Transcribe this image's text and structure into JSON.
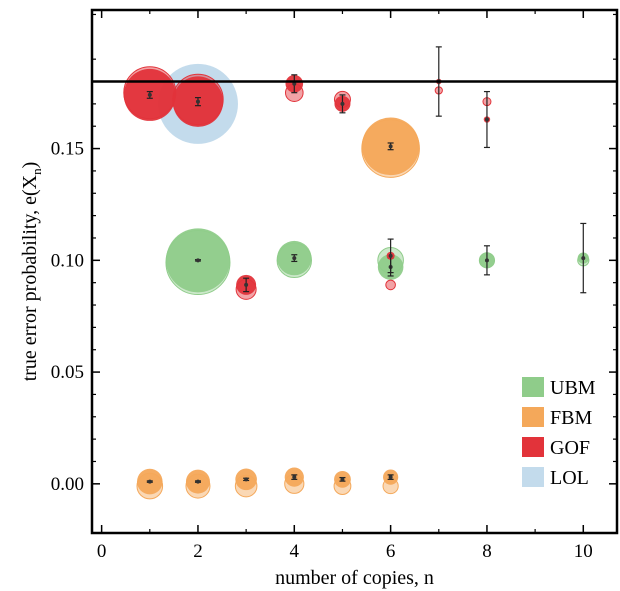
{
  "chart_data": {
    "type": "scatter",
    "title": "",
    "xlabel": "number of copies, n",
    "ylabel_main": "true error probability, e(X",
    "ylabel_sub": "n",
    "ylabel_close": ")",
    "xlim": [
      -0.2,
      10.7
    ],
    "ylim": [
      -0.022,
      0.212
    ],
    "xticks": [
      0,
      2,
      4,
      6,
      8,
      10
    ],
    "yticks": [
      0.0,
      0.05,
      0.1,
      0.15
    ],
    "xtick_labels": [
      "0",
      "2",
      "4",
      "6",
      "8",
      "10"
    ],
    "ytick_labels": [
      "0.00",
      "0.05",
      "0.10",
      "0.15"
    ],
    "reference_line_y": 0.18,
    "legend_position": "bottom-right",
    "colors": {
      "UBM": "#8fcc8a",
      "FBM": "#f4a85a",
      "GOF": "#e2333a",
      "LOL": "#c3dbec"
    },
    "legend": [
      {
        "name": "UBM"
      },
      {
        "name": "FBM"
      },
      {
        "name": "GOF"
      },
      {
        "name": "LOL"
      }
    ],
    "series": [
      {
        "name": "LOL",
        "points": [
          {
            "x": 2,
            "y": 0.17,
            "size": 1.0
          }
        ]
      },
      {
        "name": "UBM",
        "points": [
          {
            "x": 2,
            "y": 0.1,
            "size": 0.8,
            "err": 0.0003
          },
          {
            "x": 4,
            "y": 0.101,
            "size": 0.43,
            "err": 0.0015
          },
          {
            "x": 6,
            "y": 0.097,
            "size": 0.32,
            "err": 0.004
          },
          {
            "x": 8,
            "y": 0.1,
            "size": 0.19,
            "err": 0.0065
          },
          {
            "x": 10,
            "y": 0.101,
            "size": 0.14,
            "err": 0.0155
          }
        ],
        "ghosts": [
          {
            "x": 2,
            "y": 0.099,
            "size": 0.8
          },
          {
            "x": 4,
            "y": 0.1,
            "size": 0.43
          },
          {
            "x": 6,
            "y": 0.1,
            "size": 0.32
          },
          {
            "x": 8,
            "y": 0.1,
            "size": 0.19
          },
          {
            "x": 10,
            "y": 0.1,
            "size": 0.14
          }
        ]
      },
      {
        "name": "FBM",
        "points": [
          {
            "x": 1,
            "y": 0.001,
            "size": 0.32,
            "err": 0.0003
          },
          {
            "x": 2,
            "y": 0.001,
            "size": 0.3,
            "err": 0.0003
          },
          {
            "x": 3,
            "y": 0.002,
            "size": 0.27,
            "err": 0.0005
          },
          {
            "x": 4,
            "y": 0.003,
            "size": 0.24,
            "err": 0.001
          },
          {
            "x": 5,
            "y": 0.002,
            "size": 0.21,
            "err": 0.0008
          },
          {
            "x": 6,
            "y": 0.003,
            "size": 0.19,
            "err": 0.001
          },
          {
            "x": 6,
            "y": 0.151,
            "size": 0.72,
            "err": 0.0015
          }
        ],
        "ghosts": [
          {
            "x": 1,
            "y": -0.001,
            "size": 0.32
          },
          {
            "x": 2,
            "y": -0.001,
            "size": 0.3
          },
          {
            "x": 3,
            "y": -0.001,
            "size": 0.27
          },
          {
            "x": 4,
            "y": 0.0,
            "size": 0.24
          },
          {
            "x": 5,
            "y": -0.001,
            "size": 0.21
          },
          {
            "x": 6,
            "y": -0.001,
            "size": 0.19
          },
          {
            "x": 6,
            "y": 0.15,
            "size": 0.72
          }
        ]
      },
      {
        "name": "GOF",
        "points": [
          {
            "x": 1,
            "y": 0.174,
            "size": 0.65,
            "err": 0.0015
          },
          {
            "x": 2,
            "y": 0.171,
            "size": 0.63,
            "err": 0.0018
          },
          {
            "x": 3,
            "y": 0.089,
            "size": 0.25,
            "err": 0.003
          },
          {
            "x": 4,
            "y": 0.179,
            "size": 0.22,
            "err": 0.004
          },
          {
            "x": 5,
            "y": 0.17,
            "size": 0.2,
            "err": 0.004
          },
          {
            "x": 6,
            "y": 0.102,
            "size": 0.1,
            "err": 0.0075
          },
          {
            "x": 7,
            "y": 0.18,
            "size": 0.07,
            "err": 0.0155
          },
          {
            "x": 8,
            "y": 0.163,
            "size": 0.08,
            "err": 0.0125
          }
        ],
        "ghosts": [
          {
            "x": 1,
            "y": 0.175,
            "size": 0.65
          },
          {
            "x": 2,
            "y": 0.172,
            "size": 0.63
          },
          {
            "x": 3,
            "y": 0.087,
            "size": 0.25
          },
          {
            "x": 4,
            "y": 0.175,
            "size": 0.22
          },
          {
            "x": 5,
            "y": 0.172,
            "size": 0.2
          },
          {
            "x": 6,
            "y": 0.089,
            "size": 0.12
          },
          {
            "x": 7,
            "y": 0.176,
            "size": 0.09
          },
          {
            "x": 8,
            "y": 0.171,
            "size": 0.1
          }
        ]
      }
    ]
  }
}
